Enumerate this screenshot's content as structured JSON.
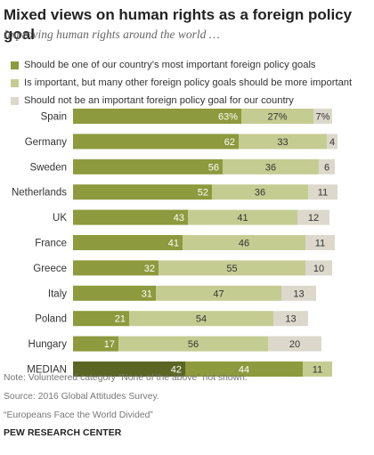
{
  "header": {
    "title": "Mixed views on human rights as a foreign policy goal",
    "subtitle": "Improving human rights around the world …"
  },
  "colors": {
    "important": "#8d9a3d",
    "one_of_many": "#c5cc92",
    "not_important": "#dcd9cc",
    "median_important": "#5b6624",
    "median_one_of_many": "#8d9a3d",
    "median_not_important": "#c5cc92"
  },
  "chart_data": {
    "type": "bar",
    "orientation": "horizontal",
    "stacked": true,
    "categories": [
      "Spain",
      "Germany",
      "Sweden",
      "Netherlands",
      "UK",
      "France",
      "Greece",
      "Italy",
      "Poland",
      "Hungary",
      "MEDIAN"
    ],
    "series": [
      {
        "name": "Should be one of our country’s most important foreign policy goals",
        "values": [
          63,
          62,
          56,
          52,
          43,
          41,
          32,
          31,
          21,
          17,
          42
        ]
      },
      {
        "name": "Is important, but many other foreign policy goals should be more important",
        "values": [
          27,
          33,
          36,
          36,
          41,
          46,
          55,
          47,
          54,
          56,
          44
        ]
      },
      {
        "name": "Should not be an important foreign policy goal for our country",
        "values": [
          7,
          4,
          6,
          11,
          12,
          11,
          10,
          13,
          13,
          20,
          11
        ]
      }
    ],
    "value_labels": [
      [
        "63%",
        "62",
        "56",
        "52",
        "43",
        "41",
        "32",
        "31",
        "21",
        "17",
        "42"
      ],
      [
        "27%",
        "33",
        "36",
        "36",
        "41",
        "46",
        "55",
        "47",
        "54",
        "56",
        "44"
      ],
      [
        "7%",
        "4",
        "6",
        "11",
        "12",
        "11",
        "10",
        "13",
        "13",
        "20",
        "11"
      ]
    ],
    "xlim": [
      0,
      100
    ],
    "grid": false,
    "legend_position": "top-left"
  },
  "footer": {
    "note": "Note: Volunteered category “None of the above” not shown.",
    "source": "Source: 2016 Global Attitudes Survey.",
    "report": "“Europeans Face the World Divided”",
    "brand": "PEW RESEARCH CENTER"
  }
}
